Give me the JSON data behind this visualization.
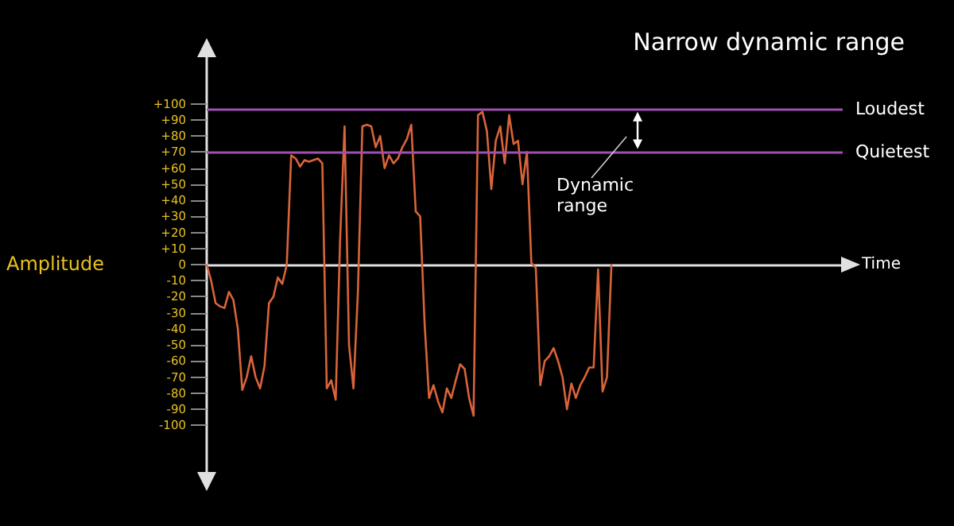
{
  "chart_data": {
    "type": "line",
    "title": "Narrow dynamic range",
    "xlabel": "Time",
    "ylabel": "Amplitude",
    "color": "#d9643a",
    "categories": [
      null,
      null,
      null,
      null,
      null,
      null,
      null,
      null,
      null,
      null,
      null,
      null,
      null,
      null,
      null,
      null,
      null,
      null,
      null,
      null,
      null,
      null,
      null,
      null,
      null,
      null,
      null,
      null,
      null,
      null,
      null,
      null,
      null,
      null,
      null,
      null,
      null,
      null,
      null,
      null,
      null,
      null,
      null,
      null,
      null,
      null,
      null,
      null,
      null,
      null,
      null,
      null,
      null,
      null,
      null,
      null,
      null,
      null,
      null,
      null,
      null,
      null,
      null,
      null,
      null,
      null,
      null,
      null,
      null,
      null,
      null,
      null,
      null,
      null,
      null,
      null,
      null,
      null,
      null,
      null,
      null,
      null,
      null,
      null,
      null,
      null,
      null,
      null,
      null,
      null,
      null,
      null,
      null,
      null,
      null,
      null,
      null,
      null,
      null,
      null,
      null,
      null,
      null,
      null,
      null,
      null,
      null,
      null,
      null,
      null,
      null,
      null,
      null,
      null,
      null,
      null,
      null,
      null,
      null,
      null,
      null,
      null,
      null,
      null,
      null,
      null,
      null,
      null,
      null,
      null,
      null,
      null,
      null,
      null,
      null,
      null,
      null,
      null,
      null,
      null,
      null,
      null,
      null,
      null
    ],
    "values": [
      0,
      -10,
      -24,
      -26,
      -27,
      -17,
      -22,
      -40,
      -78,
      -70,
      -57,
      -70,
      -77,
      -63,
      -24,
      -20,
      -8,
      -12,
      0,
      68,
      66,
      61,
      65,
      64,
      65,
      66,
      63,
      -77,
      -72,
      -84,
      16,
      86,
      -50,
      -77,
      -17,
      86,
      87,
      86,
      73,
      80,
      60,
      68,
      63,
      66,
      73,
      78,
      87,
      33,
      30,
      -37,
      -83,
      -75,
      -85,
      -92,
      -77,
      -83,
      -72,
      -62,
      -65,
      -83,
      -94,
      93,
      95,
      83,
      47,
      77,
      86,
      63,
      93,
      75,
      77,
      50,
      70,
      1,
      -2,
      -75,
      -60,
      -57,
      -52,
      -60,
      -70,
      -90,
      -74,
      -83,
      -75,
      -70,
      -64,
      -64,
      -3,
      -79,
      -70,
      0,
      null,
      null,
      null,
      null,
      null,
      null,
      null,
      null,
      null,
      null,
      null,
      null,
      null,
      null,
      null,
      null,
      null,
      null,
      null,
      null,
      null,
      null,
      null,
      null,
      null,
      null,
      null,
      null,
      null,
      null,
      null,
      null,
      null,
      null,
      null,
      null,
      null,
      null,
      null,
      null,
      null,
      null,
      null,
      null,
      null,
      null,
      null,
      null,
      null,
      null,
      null,
      null
    ],
    "ylim": [
      -130,
      130
    ],
    "yticks": [
      {
        "value": 100,
        "label": "+100"
      },
      {
        "value": 90,
        "label": "+90"
      },
      {
        "value": 80,
        "label": "+80"
      },
      {
        "value": 70,
        "label": "+70"
      },
      {
        "value": 60,
        "label": "+60"
      },
      {
        "value": 50,
        "label": "+50"
      },
      {
        "value": 40,
        "label": "+40"
      },
      {
        "value": 30,
        "label": "+30"
      },
      {
        "value": 20,
        "label": "+20"
      },
      {
        "value": 10,
        "label": "+10"
      },
      0,
      -10,
      -20,
      -30,
      -40,
      -50,
      -60,
      -70,
      -80,
      -90,
      -100
    ],
    "ref_lines": [
      {
        "axis": "y",
        "value": 97,
        "label": "Loudest",
        "color": "#a050b0"
      },
      {
        "axis": "y",
        "value": 70,
        "label": "Quietest",
        "color": "#a050b0"
      }
    ],
    "annotations": [
      "Dynamic range"
    ],
    "grid": false,
    "marker": "none",
    "line_style": "solid"
  }
}
